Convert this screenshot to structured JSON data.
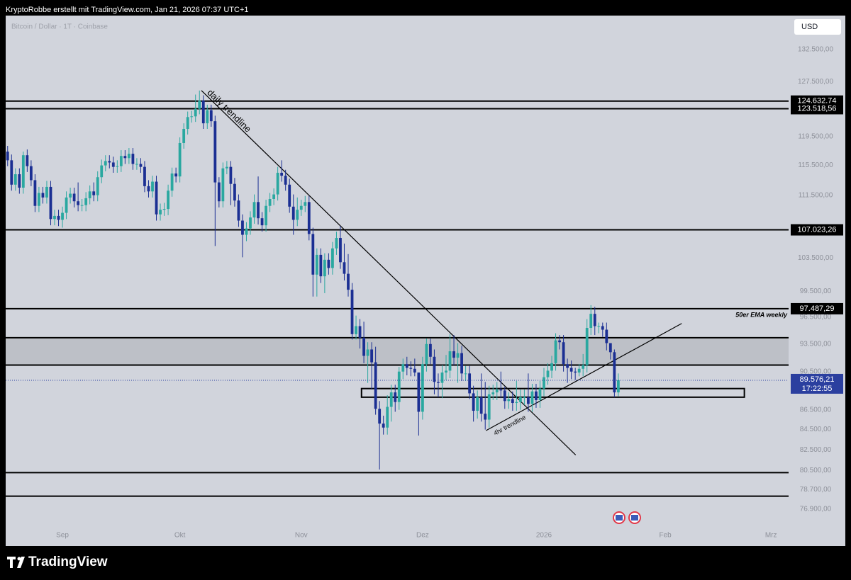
{
  "header": "KryptoRobbe erstellt mit TradingView.com, Jan 21, 2026 07:37 UTC+1",
  "symbol": "Bitcoin / Dollar · 1T · Coinbase",
  "currency_button": "USD",
  "footer_brand": "TradingView",
  "chart_data": {
    "type": "candlestick",
    "categories": [
      null,
      null,
      null,
      null,
      null,
      null,
      null,
      null,
      null,
      null,
      null,
      null,
      null,
      null,
      "Sep",
      null,
      null,
      null,
      null,
      null,
      null,
      null,
      null,
      null,
      null,
      null,
      null,
      null,
      null,
      null,
      null,
      null,
      null,
      null,
      null,
      null,
      null,
      null,
      null,
      null,
      null,
      null,
      null,
      null,
      "Okt",
      null,
      null,
      null,
      null,
      null,
      null,
      null,
      null,
      null,
      null,
      null,
      null,
      null,
      null,
      null,
      null,
      null,
      null,
      null,
      null,
      null,
      null,
      null,
      null,
      null,
      null,
      null,
      null,
      null,
      null,
      "Nov",
      null,
      null,
      null,
      null,
      null,
      null,
      null,
      null,
      null,
      null,
      null,
      null,
      null,
      null,
      null,
      null,
      null,
      null,
      null,
      null,
      null,
      null,
      null,
      null,
      null,
      null,
      null,
      null,
      null,
      null,
      "Dez",
      null,
      null,
      null,
      null,
      null,
      null,
      null,
      null,
      null,
      null,
      null,
      null,
      null,
      null,
      null,
      null,
      null,
      null,
      null,
      null,
      null,
      null,
      null,
      null,
      null,
      null,
      null,
      null,
      null,
      null,
      "2026",
      null,
      null,
      null,
      null,
      null,
      null,
      null,
      null,
      null,
      null,
      null,
      null,
      null,
      null,
      null,
      null,
      null,
      null,
      null,
      null,
      null,
      null,
      null,
      null,
      null,
      null,
      null,
      null,
      null,
      null,
      "Feb",
      null,
      null,
      null,
      null,
      null,
      null,
      null,
      null,
      null,
      null,
      null,
      null,
      null,
      null,
      null,
      null,
      null,
      null,
      null,
      null,
      null,
      null,
      null,
      null,
      null,
      null,
      "Mrz",
      null,
      null,
      null,
      null
    ],
    "open": [
      117400,
      116200,
      112900,
      114300,
      112500,
      116900,
      115400,
      113500,
      110100,
      111800,
      111200,
      112600,
      108400,
      108800,
      108300,
      109200,
      111200,
      111700,
      110700,
      110200,
      110200,
      111100,
      112000,
      111500,
      113900,
      115500,
      116100,
      115900,
      115300,
      115400,
      116800,
      116500,
      117100,
      115700,
      115700,
      115300,
      112700,
      112000,
      113300,
      109000,
      109600,
      109700,
      112100,
      114400,
      114000,
      118600,
      120600,
      122300,
      122400,
      123500,
      124700,
      121400,
      123300,
      121700,
      113200,
      110700,
      115100,
      115300,
      113000,
      110800,
      108200,
      106400,
      107200,
      108600,
      110600,
      108500,
      107600,
      110100,
      111000,
      111600,
      114500,
      114100,
      112900,
      110000,
      108300,
      109600,
      110100,
      110600,
      106500,
      101500,
      103900,
      101300,
      103300,
      102300,
      104700,
      106000,
      103000,
      101600,
      99700,
      94600,
      95500,
      94200,
      92200,
      92900,
      91500,
      86600,
      85100,
      84700,
      86800,
      88300,
      87300,
      90500,
      91300,
      90900,
      90800,
      90400,
      86300,
      91300,
      93500,
      92100,
      89400,
      89300,
      90400,
      90600,
      92700,
      92000,
      92500,
      90300,
      90300,
      88200,
      86400,
      87800,
      86100,
      85500,
      88100,
      88300,
      88600,
      88500,
      87400,
      87600,
      87200,
      87300,
      87800,
      87800,
      87100,
      88400,
      87500,
      88700,
      89900,
      90600,
      91400,
      93900,
      93700,
      91300,
      90900,
      90500,
      90400,
      90800,
      91200,
      95300,
      96900,
      95500,
      95500,
      95100,
      93600,
      92600,
      88300,
      null,
      null,
      null,
      null,
      null,
      null,
      null,
      null,
      null,
      null,
      null,
      null,
      null,
      null,
      null,
      null,
      null,
      null,
      null,
      null,
      null,
      null,
      null,
      null,
      null,
      null,
      null,
      null,
      null,
      null,
      null,
      null,
      null,
      null,
      null,
      null,
      null,
      null,
      null,
      null,
      null,
      null,
      null
    ],
    "high": [
      118200,
      117000,
      115100,
      115100,
      117400,
      117700,
      116200,
      114300,
      112600,
      112600,
      113400,
      113400,
      109600,
      109600,
      110000,
      112000,
      112500,
      112500,
      113200,
      111000,
      111900,
      112800,
      113200,
      114700,
      116300,
      116900,
      116900,
      116700,
      116200,
      117600,
      117600,
      117900,
      117900,
      116500,
      116500,
      116100,
      113500,
      114100,
      114100,
      110400,
      110500,
      112900,
      115200,
      115200,
      119400,
      121400,
      123100,
      123200,
      125600,
      126200,
      125500,
      124100,
      124100,
      122500,
      113900,
      115900,
      116100,
      116100,
      113800,
      111600,
      109000,
      108000,
      109400,
      111600,
      114000,
      109300,
      110900,
      111800,
      112400,
      115300,
      116200,
      114900,
      113700,
      111600,
      111200,
      110900,
      111400,
      111400,
      107300,
      104700,
      104700,
      104100,
      104100,
      105500,
      106800,
      107500,
      105300,
      104000,
      100500,
      96700,
      96300,
      96000,
      93700,
      93700,
      93200,
      87400,
      85900,
      88000,
      89100,
      89100,
      91000,
      91900,
      92100,
      91600,
      91900,
      90400,
      92100,
      94100,
      94100,
      92900,
      90300,
      91200,
      92300,
      94600,
      94500,
      93600,
      93300,
      91100,
      91100,
      89000,
      88500,
      90300,
      89400,
      89000,
      89100,
      89400,
      90500,
      88900,
      88300,
      88400,
      89500,
      88600,
      88600,
      90300,
      89200,
      89200,
      89500,
      90900,
      91400,
      92200,
      94700,
      94500,
      94500,
      91900,
      91700,
      90900,
      91300,
      92400,
      96300,
      97900,
      97700,
      95900,
      95900,
      95900,
      93600,
      92900,
      90300,
      null,
      null,
      null,
      null,
      null,
      null,
      null,
      null,
      null,
      null,
      null,
      null,
      null,
      null,
      null,
      null,
      null,
      null,
      null,
      null,
      null,
      null,
      null,
      null,
      null,
      null,
      null,
      null,
      null,
      null,
      null,
      null,
      null,
      null,
      null,
      null,
      null,
      null,
      null,
      null,
      null,
      null,
      null
    ],
    "low": [
      115400,
      112100,
      112100,
      111700,
      111700,
      114600,
      112700,
      109300,
      109300,
      110400,
      110400,
      107600,
      107600,
      107500,
      107300,
      108400,
      110400,
      109900,
      109400,
      109400,
      109400,
      110300,
      110700,
      110700,
      113100,
      114700,
      115100,
      114500,
      114500,
      114600,
      115700,
      115700,
      114900,
      114900,
      114500,
      111900,
      111200,
      111200,
      108200,
      108200,
      108800,
      108900,
      111300,
      113200,
      113200,
      117800,
      119800,
      121500,
      121600,
      122700,
      120600,
      120600,
      120900,
      105000,
      109900,
      109900,
      114300,
      110200,
      110000,
      107400,
      103600,
      105600,
      106400,
      107800,
      107700,
      106800,
      106800,
      109300,
      110200,
      110800,
      113300,
      112100,
      109200,
      106400,
      107500,
      108800,
      109300,
      105700,
      98900,
      98900,
      100500,
      99300,
      101500,
      101500,
      103900,
      102200,
      100800,
      98900,
      94000,
      94000,
      93000,
      91400,
      89300,
      88600,
      86000,
      80600,
      84000,
      84000,
      85300,
      86300,
      86500,
      89700,
      90100,
      90000,
      90000,
      83900,
      85500,
      90500,
      91300,
      88100,
      87800,
      87700,
      89600,
      89800,
      91200,
      89300,
      89500,
      89500,
      87600,
      85300,
      85600,
      85300,
      84500,
      84700,
      87500,
      87500,
      87700,
      86600,
      86600,
      86400,
      86400,
      86500,
      87000,
      86300,
      86300,
      86700,
      86700,
      87900,
      89100,
      89800,
      90600,
      92900,
      90500,
      89300,
      89700,
      89600,
      90000,
      90000,
      90400,
      94500,
      94500,
      94700,
      94300,
      92800,
      91800,
      87800,
      87900,
      null,
      null,
      null,
      null,
      null,
      null,
      null,
      null,
      null,
      null,
      null,
      null,
      null,
      null,
      null,
      null,
      null,
      null,
      null,
      null,
      null,
      null,
      null,
      null,
      null,
      null,
      null,
      null,
      null,
      null,
      null,
      null,
      null,
      null,
      null,
      null,
      null,
      null,
      null,
      null,
      null,
      null,
      null
    ],
    "close": [
      116200,
      112900,
      114300,
      112500,
      116900,
      115400,
      113500,
      110100,
      111800,
      111200,
      112600,
      108400,
      108800,
      108300,
      109200,
      111200,
      111700,
      110700,
      110200,
      110200,
      111100,
      112000,
      111500,
      113900,
      115500,
      116100,
      115900,
      115300,
      115400,
      116800,
      116500,
      117100,
      115700,
      115700,
      115300,
      112700,
      112000,
      113300,
      109000,
      109600,
      109700,
      112100,
      114400,
      114000,
      118600,
      120600,
      122300,
      122400,
      123500,
      124700,
      121400,
      123300,
      121700,
      113200,
      110700,
      115100,
      115300,
      113000,
      110800,
      108200,
      106400,
      107200,
      108600,
      110600,
      108500,
      107600,
      110100,
      111000,
      111600,
      114500,
      114100,
      112900,
      110000,
      108300,
      109600,
      110100,
      110600,
      106500,
      101500,
      103900,
      101300,
      103300,
      102300,
      104700,
      106000,
      103000,
      101600,
      99700,
      94600,
      95500,
      94200,
      92200,
      92900,
      91500,
      86600,
      85100,
      84700,
      86800,
      88300,
      87300,
      90500,
      91300,
      90900,
      90800,
      90400,
      86300,
      91300,
      93500,
      92100,
      89400,
      89300,
      90400,
      90600,
      92700,
      92000,
      92500,
      90300,
      90300,
      88200,
      86400,
      87800,
      86100,
      85500,
      88100,
      88300,
      88600,
      88500,
      87400,
      87600,
      87200,
      87300,
      87800,
      87800,
      87100,
      88400,
      87500,
      88700,
      89900,
      90600,
      91400,
      93900,
      93700,
      91300,
      90900,
      90500,
      90400,
      90800,
      91200,
      95300,
      96900,
      95500,
      95500,
      95100,
      93600,
      92600,
      88300,
      89576.21,
      null,
      null,
      null,
      null,
      null,
      null,
      null,
      null,
      null,
      null,
      null,
      null,
      null,
      null,
      null,
      null,
      null,
      null,
      null,
      null,
      null,
      null,
      null,
      null,
      null,
      null,
      null,
      null,
      null,
      null,
      null,
      null,
      null,
      null,
      null,
      null,
      null,
      null,
      null,
      null,
      null,
      null,
      null
    ],
    "up_color": "#2aa8a0",
    "down_color": "#1b2f93",
    "log_scale": true,
    "grid": false,
    "ylim": [
      75500,
      137900
    ],
    "yticks": [
      {
        "value": 132500,
        "label": "132.500,00"
      },
      {
        "value": 127500,
        "label": "127.500,00"
      },
      {
        "value": 119500,
        "label": "119.500,00"
      },
      {
        "value": 115500,
        "label": "115.500,00"
      },
      {
        "value": 111500,
        "label": "111.500,00"
      },
      {
        "value": 103500,
        "label": "103.500,00"
      },
      {
        "value": 99500,
        "label": "99.500,00"
      },
      {
        "value": 96500,
        "label": "96.500,00"
      },
      {
        "value": 93500,
        "label": "93.500,00"
      },
      {
        "value": 90500,
        "label": "90.500,00"
      },
      {
        "value": 86500,
        "label": "86.500,00"
      },
      {
        "value": 84500,
        "label": "84.500,00"
      },
      {
        "value": 82500,
        "label": "82.500,00"
      },
      {
        "value": 80500,
        "label": "80.500,00"
      },
      {
        "value": 78700,
        "label": "78.700,00"
      },
      {
        "value": 76900,
        "label": "76.900,00"
      }
    ],
    "hlines": [
      {
        "value": 124632.74,
        "label": "124.632,74"
      },
      {
        "value": 123518.56,
        "label": "123.518,56"
      },
      {
        "value": 107023.26,
        "label": "107.023,26"
      },
      {
        "value": 97487.29,
        "label": "97.487,29",
        "note": "50er EMA weekly"
      },
      {
        "value": 94200
      },
      {
        "value": 91200
      },
      {
        "value": 80300
      },
      {
        "value": 78100
      }
    ],
    "zone": {
      "from": 91200,
      "to": 94200,
      "color": "#b8bac2"
    },
    "box": {
      "from": [
        90.4,
        88700
      ],
      "to": [
        188.2,
        87800
      ]
    },
    "trendlines": [
      {
        "name": "daily trendline",
        "from": [
          49.5,
          126200
        ],
        "to": [
          145.1,
          82000
        ]
      },
      {
        "name": "4hr trendline",
        "from": [
          122.2,
          84400
        ],
        "to": [
          172.2,
          95800
        ]
      }
    ],
    "last_price_label": "89.576,21",
    "countdown": "17:22:55",
    "last_color": "#2b3f9f"
  }
}
